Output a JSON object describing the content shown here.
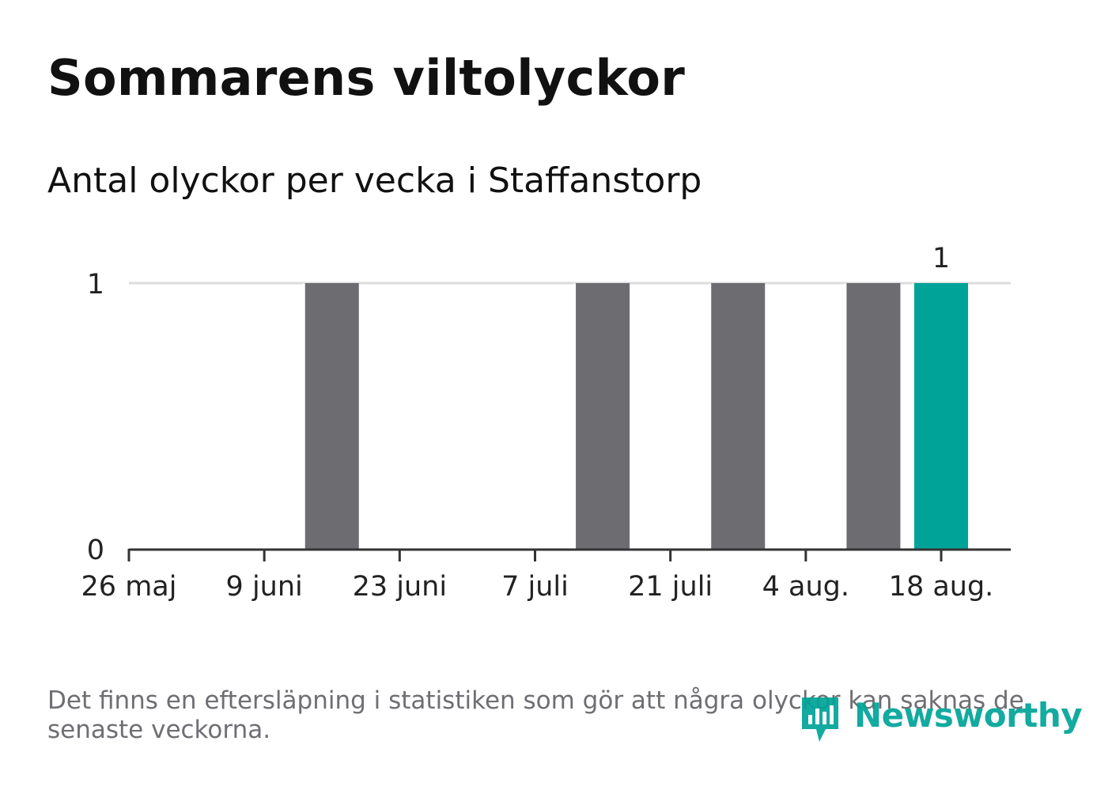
{
  "title": "Sommarens viltolyckor",
  "subtitle": "Antal olyckor per vecka i Staffanstorp",
  "footnote": "Det finns en eftersläpning i statistiken som gör att några olyckor kan saknas de senaste veckorna.",
  "brand": "Newsworthy",
  "colors": {
    "bar": "#6d6c71",
    "highlight": "#00a398",
    "grid": "#dcdcdc",
    "axis": "#333333",
    "text": "#222222"
  },
  "chart_data": {
    "type": "bar",
    "categories": [
      "26 maj",
      "2 juni",
      "9 juni",
      "16 juni",
      "23 juni",
      "30 juni",
      "7 juli",
      "14 juli",
      "21 juli",
      "28 juli",
      "4 aug.",
      "11 aug.",
      "18 aug."
    ],
    "values": [
      0,
      0,
      0,
      1,
      0,
      0,
      0,
      1,
      0,
      1,
      0,
      1,
      1
    ],
    "tick_labels": [
      "26 maj",
      "9 juni",
      "23 juni",
      "7 juli",
      "21 juli",
      "4 aug.",
      "18 aug."
    ],
    "ylim": [
      0,
      1
    ],
    "yticks": [
      0,
      1
    ],
    "highlight_index": 12,
    "data_labels": [
      {
        "index": 12,
        "text": "1"
      }
    ],
    "grid": true
  }
}
